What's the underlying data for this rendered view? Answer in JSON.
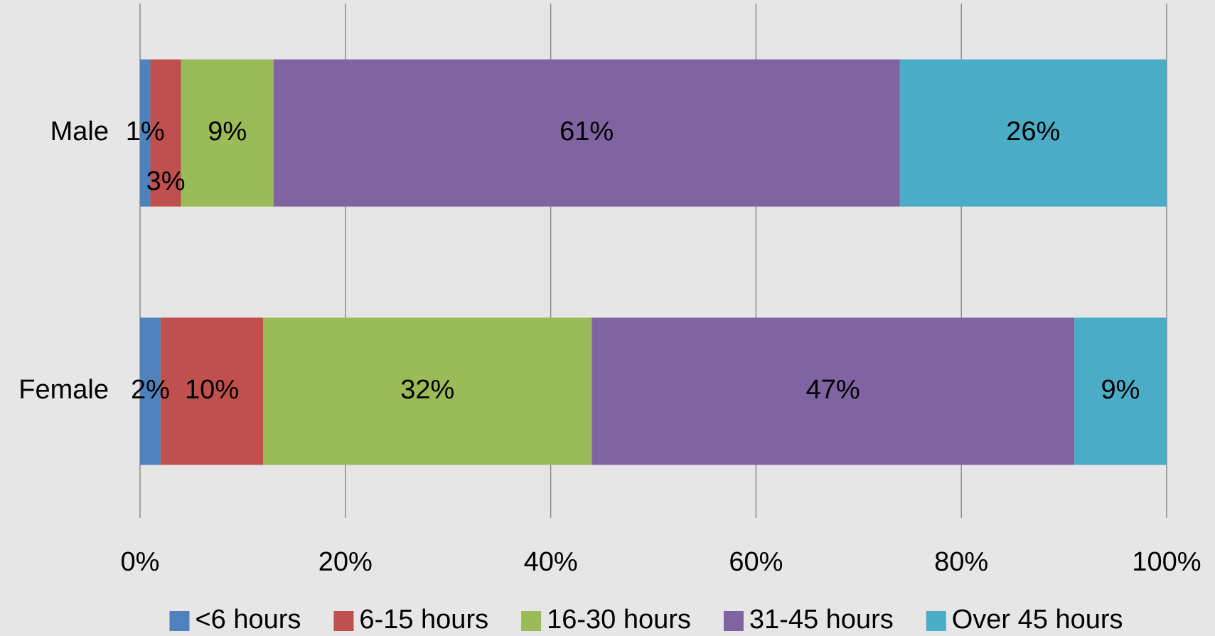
{
  "chart_data": {
    "type": "stacked-bar-horizontal",
    "categories": [
      "Male",
      "Female"
    ],
    "series": [
      {
        "name": "<6 hours",
        "color": "#4f81bd",
        "values": [
          1,
          2
        ],
        "value_labels": [
          "1%",
          "2%"
        ]
      },
      {
        "name": "6-15 hours",
        "color": "#c0504d",
        "values": [
          3,
          10
        ],
        "value_labels": [
          "3%",
          "10%"
        ]
      },
      {
        "name": "16-30 hours",
        "color": "#9bbb59",
        "values": [
          9,
          32
        ],
        "value_labels": [
          "9%",
          "32%"
        ]
      },
      {
        "name": "31-45 hours",
        "color": "#8064a2",
        "values": [
          61,
          47
        ],
        "value_labels": [
          "61%",
          "47%"
        ]
      },
      {
        "name": "Over 45 hours",
        "color": "#4bacc6",
        "values": [
          26,
          9
        ],
        "value_labels": [
          "26%",
          "9%"
        ]
      }
    ],
    "xlim": [
      0,
      100
    ],
    "xticks": [
      {
        "value": 0,
        "label": "0%"
      },
      {
        "value": 20,
        "label": "20%"
      },
      {
        "value": 40,
        "label": "40%"
      },
      {
        "value": 60,
        "label": "60%"
      },
      {
        "value": 80,
        "label": "80%"
      },
      {
        "value": 100,
        "label": "100%"
      }
    ],
    "grid": true,
    "legend": "bottom"
  }
}
